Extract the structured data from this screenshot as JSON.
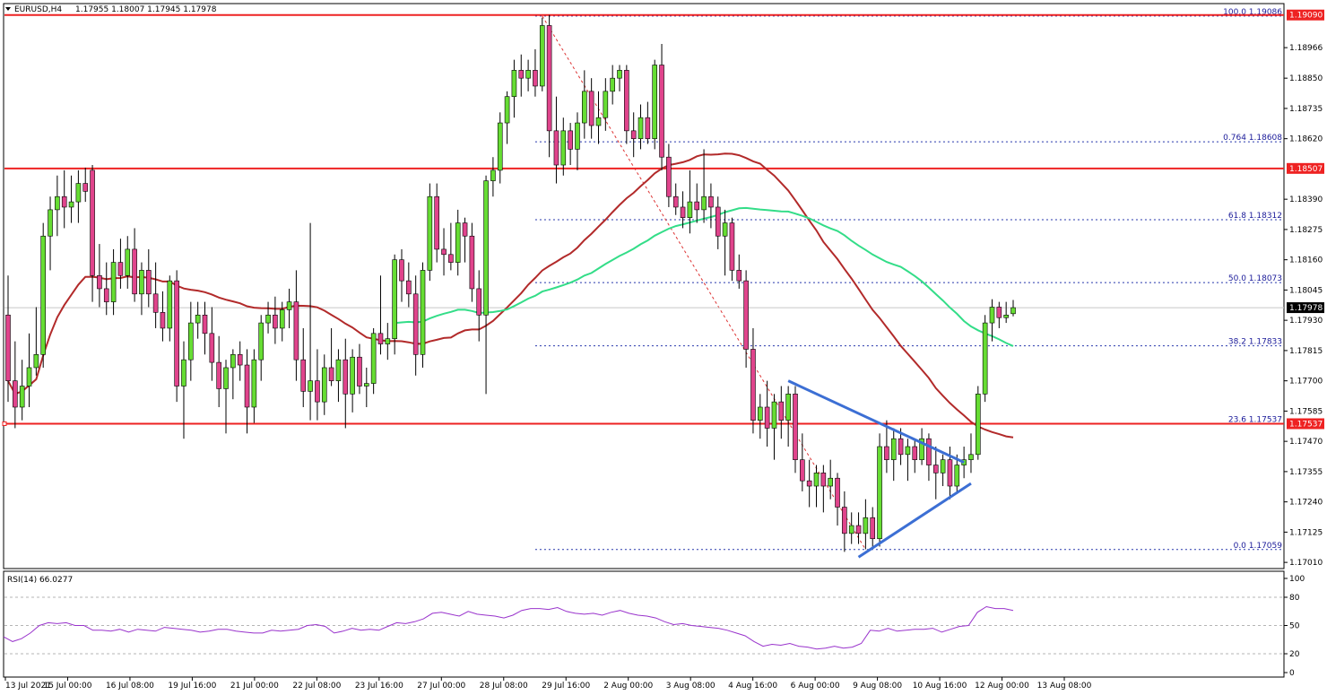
{
  "header": {
    "symbol_label": "EURUSD,H4",
    "ohlc": "1.17955 1.18007 1.17945 1.17978"
  },
  "colors": {
    "bull": "#66dd33",
    "bear": "#e0448c",
    "wick": "#000000",
    "sr_line": "#ee2222",
    "ma_fast": "#33dd88",
    "ma_slow": "#b22a2a",
    "trendline": "#3c6fd4",
    "fib": "#2233aa",
    "fib_diag": "#dd3333",
    "rsi": "#9933cc",
    "tag_red": "#ee2222",
    "tag_black": "#000000"
  },
  "chart_data": [
    {
      "type": "candlestick",
      "symbol": "EURUSD",
      "timeframe": "H4",
      "price_axis_ticks": [
        "1.18966",
        "1.18850",
        "1.18735",
        "1.18620",
        "1.18390",
        "1.18275",
        "1.18160",
        "1.18045",
        "1.17930",
        "1.17815",
        "1.17700",
        "1.17585",
        "1.17470",
        "1.17355",
        "1.17240",
        "1.17125",
        "1.17010"
      ],
      "ylim": [
        1.1699,
        1.1913
      ],
      "time_labels": [
        "13 Jul 2021",
        "15 Jul 00:00",
        "16 Jul 08:00",
        "19 Jul 16:00",
        "21 Jul 00:00",
        "22 Jul 08:00",
        "23 Jul 16:00",
        "27 Jul 00:00",
        "28 Jul 08:00",
        "29 Jul 16:00",
        "2 Aug 00:00",
        "3 Aug 08:00",
        "4 Aug 16:00",
        "6 Aug 00:00",
        "9 Aug 08:00",
        "10 Aug 16:00",
        "12 Aug 00:00",
        "13 Aug 08:00"
      ],
      "ohlc": [
        [
          1.1795,
          1.181,
          1.1762,
          1.177
        ],
        [
          1.177,
          1.1785,
          1.1752,
          1.176
        ],
        [
          1.176,
          1.1778,
          1.1755,
          1.1768
        ],
        [
          1.1768,
          1.1788,
          1.176,
          1.1775
        ],
        [
          1.1775,
          1.1798,
          1.1772,
          1.178
        ],
        [
          1.178,
          1.183,
          1.1775,
          1.1825
        ],
        [
          1.1825,
          1.184,
          1.1812,
          1.1835
        ],
        [
          1.1835,
          1.1848,
          1.1825,
          1.184
        ],
        [
          1.184,
          1.185,
          1.1828,
          1.1836
        ],
        [
          1.1836,
          1.1848,
          1.183,
          1.1838
        ],
        [
          1.1838,
          1.185,
          1.183,
          1.1845
        ],
        [
          1.1845,
          1.1851,
          1.1838,
          1.1842
        ],
        [
          1.185,
          1.1852,
          1.18,
          1.181
        ],
        [
          1.181,
          1.1822,
          1.1798,
          1.1805
        ],
        [
          1.1805,
          1.1815,
          1.1795,
          1.18
        ],
        [
          1.18,
          1.182,
          1.1795,
          1.1815
        ],
        [
          1.1815,
          1.1824,
          1.1805,
          1.181
        ],
        [
          1.181,
          1.1825,
          1.1805,
          1.182
        ],
        [
          1.182,
          1.1828,
          1.18,
          1.1803
        ],
        [
          1.1803,
          1.1815,
          1.1795,
          1.1812
        ],
        [
          1.1812,
          1.182,
          1.1798,
          1.1803
        ],
        [
          1.1803,
          1.1815,
          1.179,
          1.1796
        ],
        [
          1.1796,
          1.1804,
          1.1785,
          1.179
        ],
        [
          1.179,
          1.181,
          1.1785,
          1.1808
        ],
        [
          1.1808,
          1.1812,
          1.1762,
          1.1768
        ],
        [
          1.1768,
          1.1785,
          1.1748,
          1.1778
        ],
        [
          1.1778,
          1.18,
          1.177,
          1.1792
        ],
        [
          1.1792,
          1.18,
          1.1786,
          1.1795
        ],
        [
          1.1795,
          1.18,
          1.178,
          1.1788
        ],
        [
          1.1788,
          1.1798,
          1.177,
          1.1777
        ],
        [
          1.1777,
          1.1787,
          1.176,
          1.1767
        ],
        [
          1.1767,
          1.1778,
          1.175,
          1.1775
        ],
        [
          1.1775,
          1.1782,
          1.1763,
          1.178
        ],
        [
          1.178,
          1.1785,
          1.177,
          1.1776
        ],
        [
          1.1776,
          1.1782,
          1.175,
          1.176
        ],
        [
          1.176,
          1.1782,
          1.1754,
          1.1778
        ],
        [
          1.1778,
          1.1795,
          1.177,
          1.1792
        ],
        [
          1.1792,
          1.18,
          1.1788,
          1.1795
        ],
        [
          1.1795,
          1.1802,
          1.1784,
          1.179
        ],
        [
          1.179,
          1.18,
          1.1785,
          1.1797
        ],
        [
          1.1797,
          1.1805,
          1.179,
          1.18
        ],
        [
          1.18,
          1.1812,
          1.177,
          1.1778
        ],
        [
          1.1778,
          1.179,
          1.176,
          1.1766
        ],
        [
          1.1766,
          1.183,
          1.1755,
          1.177
        ],
        [
          1.177,
          1.1782,
          1.1755,
          1.1762
        ],
        [
          1.1762,
          1.178,
          1.1757,
          1.1775
        ],
        [
          1.1775,
          1.179,
          1.1768,
          1.177
        ],
        [
          1.177,
          1.1782,
          1.1762,
          1.1778
        ],
        [
          1.1778,
          1.1786,
          1.1752,
          1.1765
        ],
        [
          1.1765,
          1.1782,
          1.1758,
          1.1779
        ],
        [
          1.1779,
          1.1784,
          1.1765,
          1.1768
        ],
        [
          1.1768,
          1.1775,
          1.176,
          1.1769
        ],
        [
          1.1769,
          1.179,
          1.1765,
          1.1788
        ],
        [
          1.1788,
          1.181,
          1.178,
          1.1784
        ],
        [
          1.1784,
          1.1792,
          1.1778,
          1.1786
        ],
        [
          1.1786,
          1.1818,
          1.178,
          1.1816
        ],
        [
          1.1816,
          1.182,
          1.18,
          1.1808
        ],
        [
          1.1808,
          1.1815,
          1.1798,
          1.1803
        ],
        [
          1.1803,
          1.181,
          1.1772,
          1.178
        ],
        [
          1.178,
          1.1815,
          1.1775,
          1.1812
        ],
        [
          1.1812,
          1.1845,
          1.1808,
          1.184
        ],
        [
          1.184,
          1.1845,
          1.1815,
          1.182
        ],
        [
          1.182,
          1.1828,
          1.181,
          1.1818
        ],
        [
          1.1818,
          1.183,
          1.1812,
          1.1815
        ],
        [
          1.1815,
          1.1835,
          1.181,
          1.183
        ],
        [
          1.183,
          1.1832,
          1.1815,
          1.1825
        ],
        [
          1.1825,
          1.183,
          1.18,
          1.1805
        ],
        [
          1.1805,
          1.1812,
          1.1785,
          1.1795
        ],
        [
          1.1795,
          1.1848,
          1.1765,
          1.1846
        ],
        [
          1.1846,
          1.1855,
          1.184,
          1.185
        ],
        [
          1.185,
          1.1872,
          1.1845,
          1.1868
        ],
        [
          1.1868,
          1.188,
          1.186,
          1.1878
        ],
        [
          1.1878,
          1.1892,
          1.187,
          1.1888
        ],
        [
          1.1888,
          1.1894,
          1.1878,
          1.1885
        ],
        [
          1.1885,
          1.1892,
          1.188,
          1.1888
        ],
        [
          1.1888,
          1.1896,
          1.1878,
          1.1882
        ],
        [
          1.1882,
          1.1908,
          1.188,
          1.1905
        ],
        [
          1.1905,
          1.1909,
          1.1855,
          1.1865
        ],
        [
          1.1865,
          1.1878,
          1.1845,
          1.1852
        ],
        [
          1.1852,
          1.187,
          1.1848,
          1.1865
        ],
        [
          1.1865,
          1.1868,
          1.1852,
          1.1858
        ],
        [
          1.1858,
          1.1872,
          1.185,
          1.1868
        ],
        [
          1.1868,
          1.1888,
          1.1862,
          1.188
        ],
        [
          1.188,
          1.1885,
          1.1862,
          1.1867
        ],
        [
          1.1867,
          1.188,
          1.186,
          1.187
        ],
        [
          1.187,
          1.1885,
          1.1865,
          1.188
        ],
        [
          1.188,
          1.189,
          1.1875,
          1.1885
        ],
        [
          1.1885,
          1.189,
          1.188,
          1.1888
        ],
        [
          1.1888,
          1.189,
          1.186,
          1.1865
        ],
        [
          1.1865,
          1.1872,
          1.1855,
          1.1862
        ],
        [
          1.1862,
          1.1875,
          1.1858,
          1.187
        ],
        [
          1.187,
          1.1876,
          1.186,
          1.1862
        ],
        [
          1.1862,
          1.1892,
          1.1858,
          1.189
        ],
        [
          1.189,
          1.1898,
          1.185,
          1.1855
        ],
        [
          1.1855,
          1.186,
          1.1836,
          1.184
        ],
        [
          1.184,
          1.1845,
          1.1833,
          1.1836
        ],
        [
          1.1836,
          1.1842,
          1.1828,
          1.1832
        ],
        [
          1.1832,
          1.185,
          1.1826,
          1.1838
        ],
        [
          1.1838,
          1.1845,
          1.183,
          1.1835
        ],
        [
          1.1835,
          1.1858,
          1.183,
          1.184
        ],
        [
          1.184,
          1.1845,
          1.1828,
          1.1836
        ],
        [
          1.1836,
          1.184,
          1.182,
          1.1825
        ],
        [
          1.1825,
          1.1835,
          1.181,
          1.183
        ],
        [
          1.183,
          1.1832,
          1.1808,
          1.1812
        ],
        [
          1.1812,
          1.1818,
          1.1805,
          1.1808
        ],
        [
          1.1808,
          1.1812,
          1.1775,
          1.1782
        ],
        [
          1.1782,
          1.179,
          1.175,
          1.1755
        ],
        [
          1.1755,
          1.1765,
          1.1748,
          1.176
        ],
        [
          1.176,
          1.177,
          1.1745,
          1.1752
        ],
        [
          1.1752,
          1.1765,
          1.174,
          1.1762
        ],
        [
          1.1762,
          1.1768,
          1.1748,
          1.1755
        ],
        [
          1.1755,
          1.1768,
          1.1745,
          1.1765
        ],
        [
          1.1765,
          1.1768,
          1.1735,
          1.174
        ],
        [
          1.174,
          1.175,
          1.1728,
          1.1732
        ],
        [
          1.1732,
          1.174,
          1.1722,
          1.173
        ],
        [
          1.173,
          1.1738,
          1.1722,
          1.1735
        ],
        [
          1.1735,
          1.1738,
          1.172,
          1.173
        ],
        [
          1.173,
          1.174,
          1.1725,
          1.1733
        ],
        [
          1.1733,
          1.1735,
          1.1715,
          1.1722
        ],
        [
          1.1722,
          1.1728,
          1.1705,
          1.1712
        ],
        [
          1.1712,
          1.172,
          1.1708,
          1.1715
        ],
        [
          1.1715,
          1.172,
          1.1708,
          1.1712
        ],
        [
          1.1712,
          1.1725,
          1.1706,
          1.1718
        ],
        [
          1.1718,
          1.1722,
          1.1706,
          1.171
        ],
        [
          1.171,
          1.175,
          1.1707,
          1.1745
        ],
        [
          1.1745,
          1.1755,
          1.1735,
          1.174
        ],
        [
          1.174,
          1.1752,
          1.1732,
          1.1748
        ],
        [
          1.1748,
          1.1752,
          1.1738,
          1.1742
        ],
        [
          1.1742,
          1.1748,
          1.1732,
          1.1745
        ],
        [
          1.1745,
          1.1748,
          1.1735,
          1.174
        ],
        [
          1.174,
          1.1752,
          1.1738,
          1.1748
        ],
        [
          1.1748,
          1.175,
          1.1732,
          1.1738
        ],
        [
          1.1738,
          1.1745,
          1.1725,
          1.1735
        ],
        [
          1.1735,
          1.1742,
          1.173,
          1.174
        ],
        [
          1.174,
          1.1745,
          1.1725,
          1.173
        ],
        [
          1.173,
          1.1742,
          1.1727,
          1.1738
        ],
        [
          1.1738,
          1.1745,
          1.1733,
          1.174
        ],
        [
          1.174,
          1.175,
          1.1735,
          1.1742
        ],
        [
          1.1742,
          1.1768,
          1.174,
          1.1765
        ],
        [
          1.1765,
          1.1795,
          1.1762,
          1.1792
        ],
        [
          1.1792,
          1.1801,
          1.1785,
          1.1798
        ],
        [
          1.1798,
          1.18,
          1.179,
          1.1794
        ],
        [
          1.1794,
          1.18,
          1.1792,
          1.1795
        ],
        [
          1.17955,
          1.18007,
          1.17945,
          1.17978
        ]
      ],
      "horizontal_levels": [
        {
          "price": 1.1909,
          "label": "1.19090",
          "tag": "red"
        },
        {
          "price": 1.18507,
          "label": "1.18507",
          "tag": "red"
        },
        {
          "price": 1.17537,
          "label": "1.17537",
          "tag": "red"
        }
      ],
      "current_price_label": "1.17978",
      "fibonacci": [
        {
          "price": 1.19086,
          "label": "100.0 1.19086"
        },
        {
          "price": 1.18608,
          "label": "0.764 1.18608"
        },
        {
          "price": 1.18312,
          "label": "61.8 1.18312"
        },
        {
          "price": 1.18073,
          "label": "50.0 1.18073"
        },
        {
          "price": 1.17833,
          "label": "38.2 1.17833"
        },
        {
          "price": 1.17537,
          "label": "23.6 1.17537"
        },
        {
          "price": 1.17059,
          "label": "0.0 1.17059"
        }
      ]
    },
    {
      "type": "line",
      "indicator": "RSI",
      "label": "RSI(14) 66.0277",
      "ylim": [
        0,
        100
      ],
      "ticks": [
        "100",
        "80",
        "50",
        "20",
        "0"
      ],
      "levels": [
        80,
        50,
        20
      ],
      "values": [
        38,
        33,
        36,
        42,
        50,
        53,
        52,
        53,
        50,
        50,
        45,
        45,
        44,
        46,
        43,
        46,
        45,
        44,
        48,
        47,
        46,
        45,
        43,
        44,
        46,
        46,
        44,
        43,
        42,
        42,
        45,
        44,
        45,
        46,
        50,
        51,
        49,
        42,
        44,
        47,
        45,
        46,
        45,
        49,
        53,
        52,
        54,
        57,
        63,
        64,
        62,
        60,
        65,
        62,
        61,
        60,
        58,
        61,
        66,
        68,
        68,
        67,
        69,
        65,
        63,
        62,
        63,
        61,
        64,
        66,
        63,
        61,
        60,
        58,
        54,
        51,
        52,
        50,
        49,
        48,
        47,
        45,
        42,
        39,
        33,
        28,
        30,
        29,
        31,
        28,
        27,
        25,
        26,
        28,
        26,
        27,
        31,
        45,
        44,
        47,
        44,
        45,
        46,
        46,
        47,
        43,
        46,
        49,
        50,
        64,
        70,
        68,
        68,
        66
      ]
    }
  ]
}
